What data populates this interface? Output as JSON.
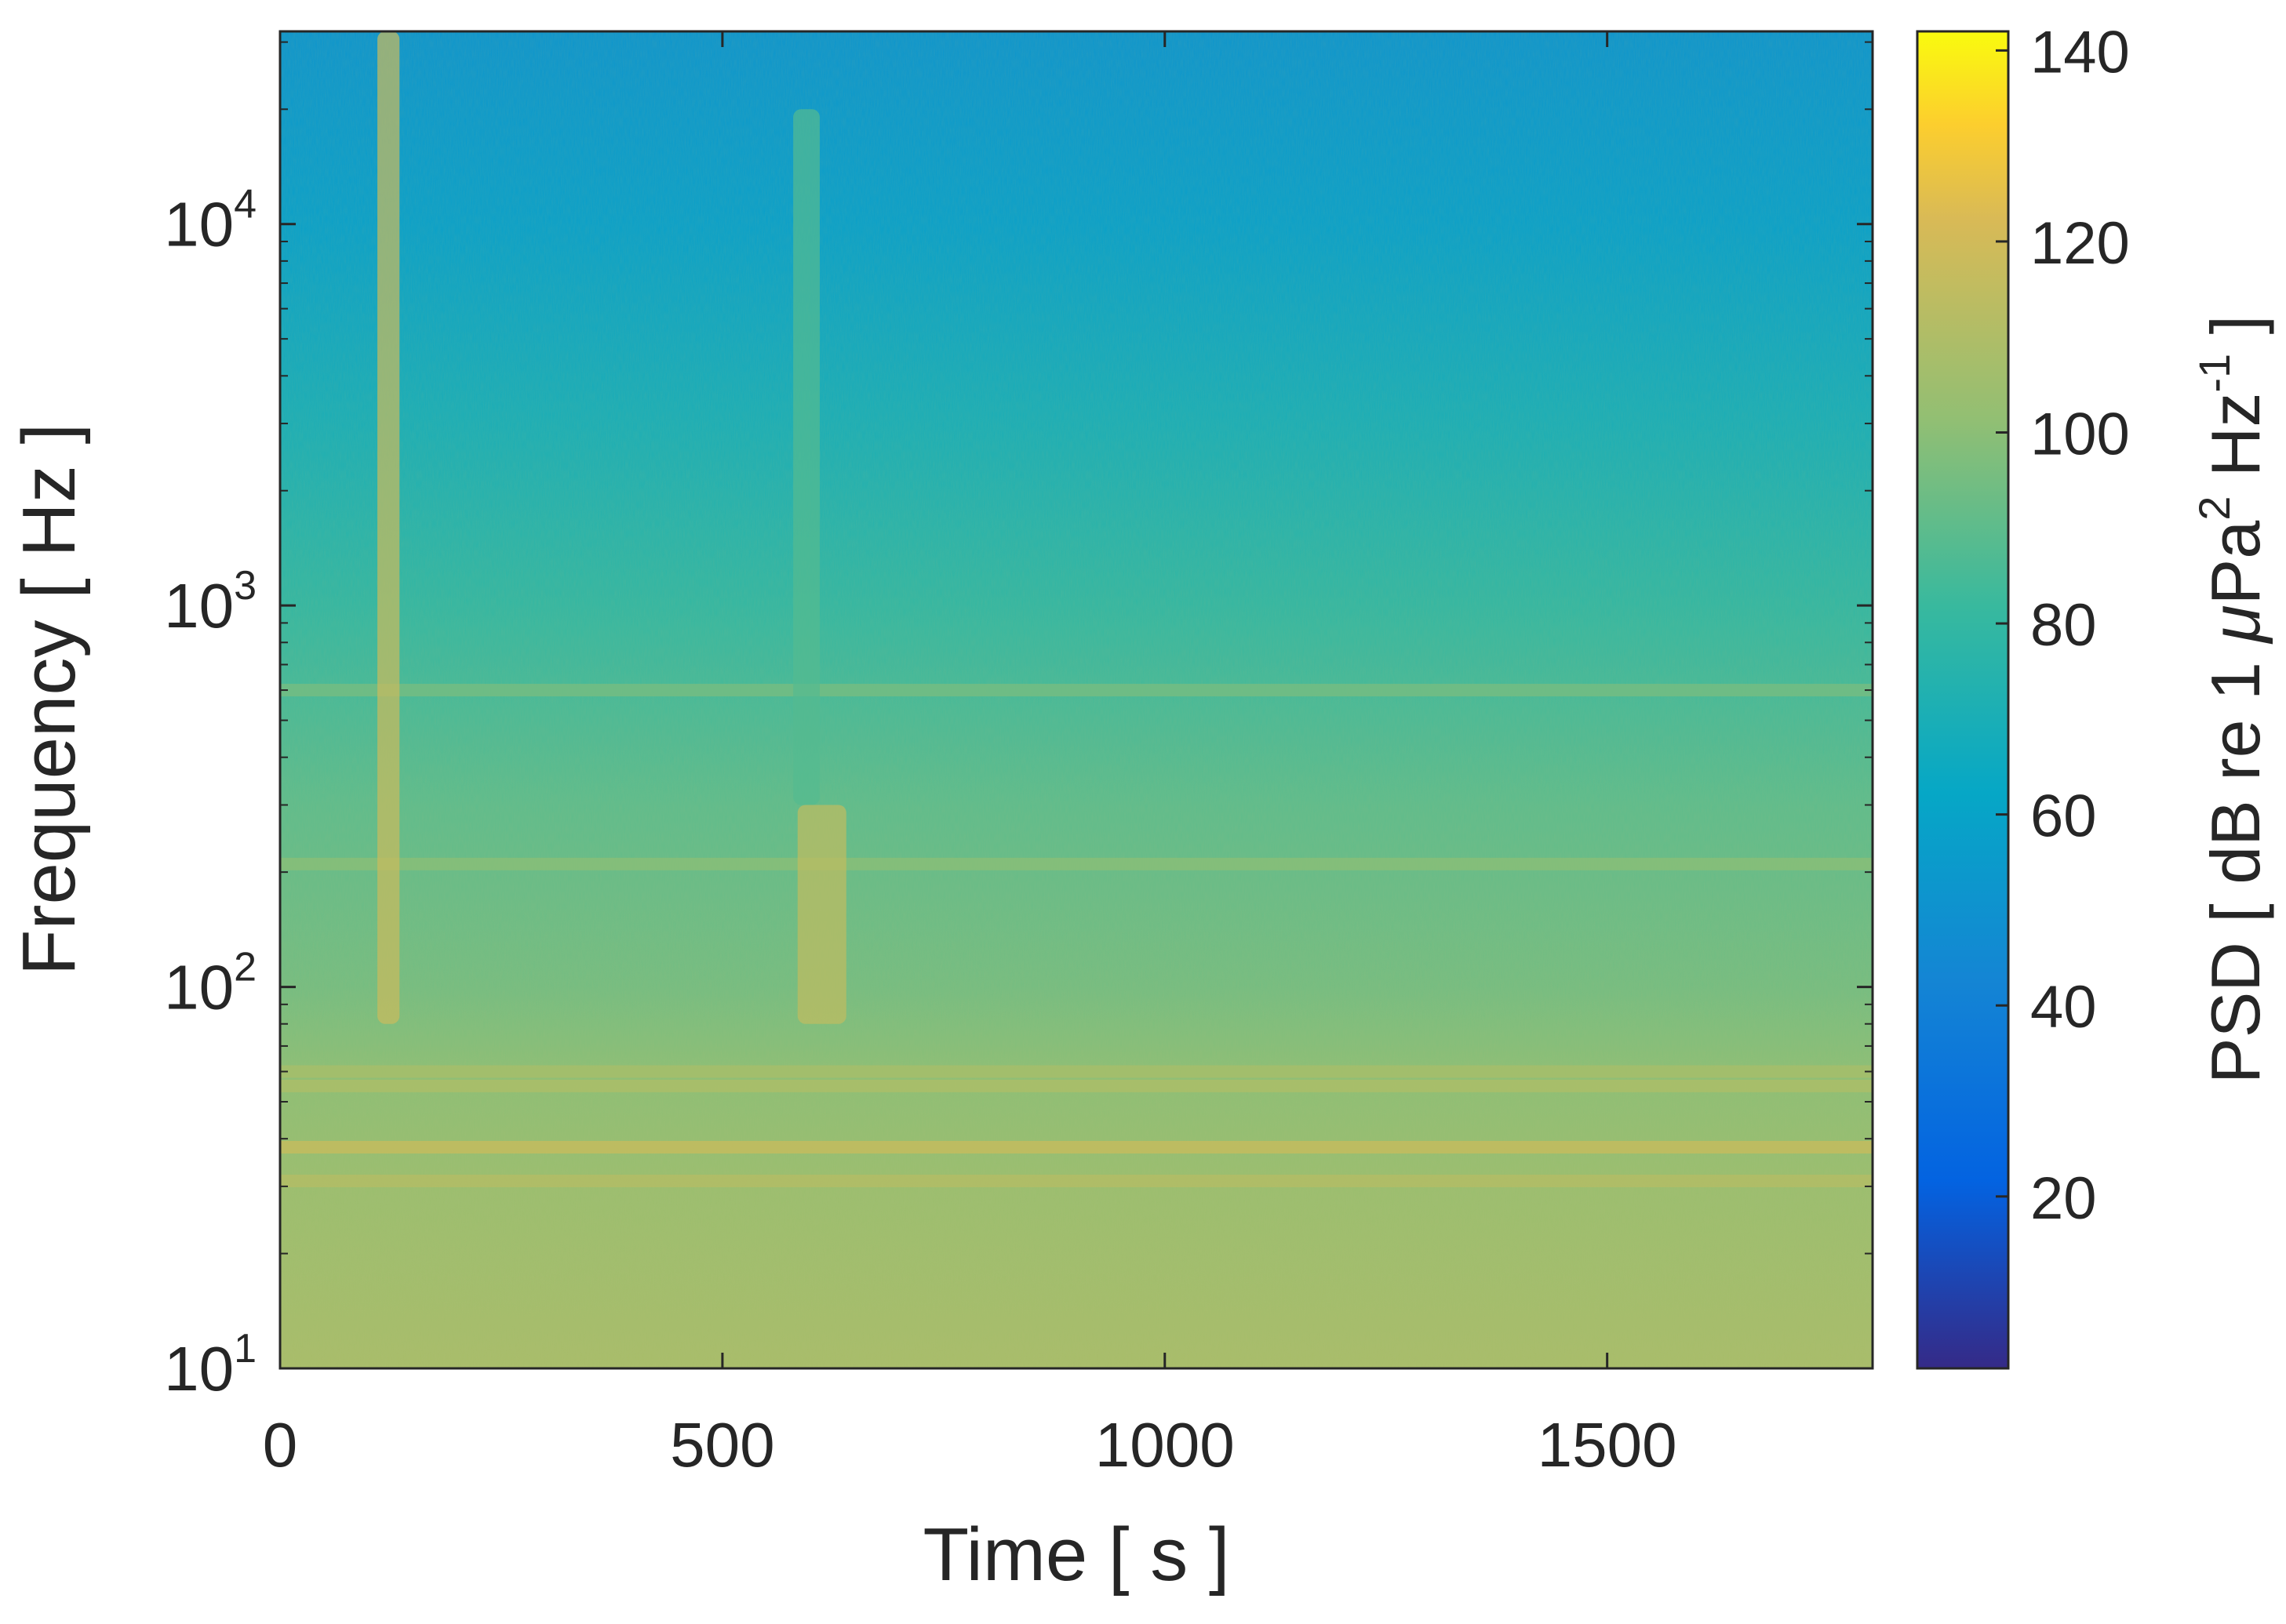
{
  "chart_data": {
    "type": "heatmap",
    "title": "",
    "xlabel": "Time [ s ]",
    "ylabel": "Frequency [ Hz ]",
    "colorbar_label": "PSD [ dB re 1 μPa² Hz⁻¹ ]",
    "colorbar_parts": {
      "prefix": "PSD [ dB re 1 ",
      "mu": "μ",
      "pa": "Pa",
      "sq": "2",
      "hz": " Hz",
      "neg1": "-1",
      "suffix": " ]"
    },
    "xlim": [
      0,
      1800
    ],
    "ylim": [
      10,
      32000
    ],
    "yscale": "log",
    "clim": [
      2,
      142
    ],
    "colormap": "parula",
    "x_ticks": [
      {
        "value": 0,
        "label": "0"
      },
      {
        "value": 500,
        "label": "500"
      },
      {
        "value": 1000,
        "label": "1000"
      },
      {
        "value": 1500,
        "label": "1500"
      }
    ],
    "y_ticks": [
      {
        "value": 10,
        "base": "10",
        "exp": "1"
      },
      {
        "value": 100,
        "base": "10",
        "exp": "2"
      },
      {
        "value": 1000,
        "base": "10",
        "exp": "3"
      },
      {
        "value": 10000,
        "base": "10",
        "exp": "4"
      }
    ],
    "colorbar_ticks": [
      {
        "value": 20,
        "label": "20"
      },
      {
        "value": 40,
        "label": "40"
      },
      {
        "value": 60,
        "label": "60"
      },
      {
        "value": 80,
        "label": "80"
      },
      {
        "value": 100,
        "label": "100"
      },
      {
        "value": 120,
        "label": "120"
      },
      {
        "value": 140,
        "label": "140"
      }
    ],
    "background_psd_profile": [
      {
        "freq": 10,
        "psd": 108
      },
      {
        "freq": 30,
        "psd": 104
      },
      {
        "freq": 60,
        "psd": 100
      },
      {
        "freq": 100,
        "psd": 95
      },
      {
        "freq": 300,
        "psd": 90
      },
      {
        "freq": 1000,
        "psd": 80
      },
      {
        "freq": 3000,
        "psd": 70
      },
      {
        "freq": 10000,
        "psd": 58
      },
      {
        "freq": 32000,
        "psd": 52
      }
    ],
    "tonal_lines": [
      {
        "freq": 38,
        "psd": 118
      },
      {
        "freq": 31,
        "psd": 112
      },
      {
        "freq": 55,
        "psd": 110
      },
      {
        "freq": 60,
        "psd": 108
      },
      {
        "freq": 210,
        "psd": 100
      },
      {
        "freq": 600,
        "psd": 96
      }
    ],
    "transient_events": [
      {
        "time_start": 110,
        "time_end": 135,
        "freq_low": 80,
        "freq_high": 32000,
        "psd": 118
      },
      {
        "time_start": 585,
        "time_end": 640,
        "freq_low": 80,
        "freq_high": 300,
        "psd": 115
      },
      {
        "time_start": 580,
        "time_end": 610,
        "freq_low": 300,
        "freq_high": 20000,
        "psd": 88
      }
    ]
  }
}
